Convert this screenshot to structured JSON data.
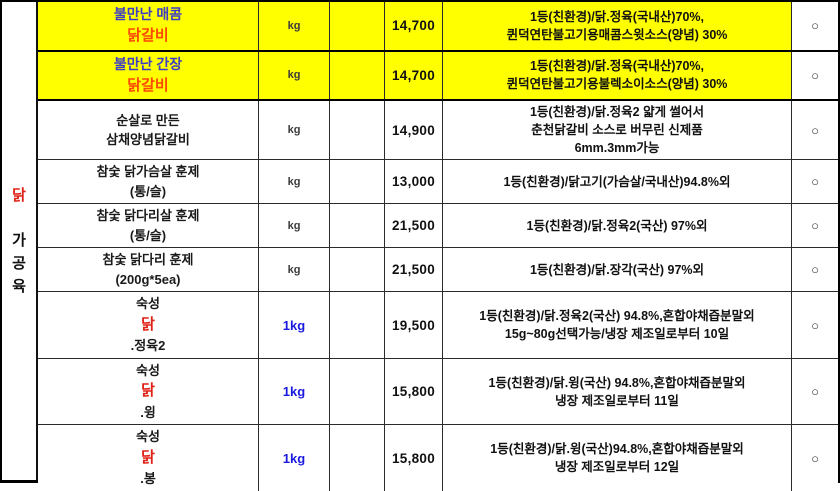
{
  "table": {
    "sidebar": {
      "main": "닭",
      "sub": [
        "가",
        "공",
        "육"
      ]
    },
    "colors": {
      "highlight_bg": "#ffff00",
      "name_blue": "#3c3cc4",
      "name_orange_red": "#ff4800",
      "name_red": "#e02318",
      "unit_blue": "#1a1ae0"
    },
    "marker_symbol": "○",
    "rows": [
      {
        "highlight": true,
        "name_lines": [
          [
            {
              "t": "불만난 매콤 ",
              "s": "blue"
            },
            {
              "t": "닭갈비",
              "s": "orange"
            }
          ]
        ],
        "unit": "kg",
        "unit_style": "dark",
        "price": "14,700",
        "desc_lines": [
          "1등(친환경)/닭.정육(국내산)70%,",
          "퀸덕연탄불고기용매콤스윗소스(양념) 30%"
        ],
        "marker": "○"
      },
      {
        "highlight": true,
        "name_lines": [
          [
            {
              "t": "불만난 간장 ",
              "s": "blue"
            },
            {
              "t": "닭갈비",
              "s": "orange"
            }
          ]
        ],
        "unit": "kg",
        "unit_style": "dark",
        "price": "14,700",
        "desc_lines": [
          "1등(친환경)/닭.정육(국내산)70%,",
          "퀸덕연탄불고기용불렉소이소스(양념) 30%"
        ],
        "marker": "○"
      },
      {
        "highlight": false,
        "name_lines": [
          [
            {
              "t": "순살로 만든",
              "s": "plain"
            }
          ],
          [
            {
              "t": "삼채양념닭갈비",
              "s": "plain"
            }
          ]
        ],
        "unit": "kg",
        "unit_style": "dark",
        "price": "14,900",
        "desc_lines": [
          "1등(친환경)/닭.정육2 얇게 썰어서",
          "춘천닭갈비 소스로 버무린 신제품",
          "6mm.3mm가능"
        ],
        "marker": "○"
      },
      {
        "highlight": false,
        "name_lines": [
          [
            {
              "t": "참숯 닭가슴살 훈제",
              "s": "plain"
            }
          ],
          [
            {
              "t": "(통/슬)",
              "s": "plain"
            }
          ]
        ],
        "unit": "kg",
        "unit_style": "dark",
        "price": "13,000",
        "desc_lines": [
          "1등(친환경)/닭고기(가슴살/국내산)94.8%외"
        ],
        "marker": "○"
      },
      {
        "highlight": false,
        "name_lines": [
          [
            {
              "t": "참숯 닭다리살 훈제",
              "s": "plain"
            }
          ],
          [
            {
              "t": "(통/슬)",
              "s": "plain"
            }
          ]
        ],
        "unit": "kg",
        "unit_style": "dark",
        "price": "21,500",
        "desc_lines": [
          "1등(친환경)/닭.정육2(국산) 97%외"
        ],
        "marker": "○"
      },
      {
        "highlight": false,
        "name_lines": [
          [
            {
              "t": "참숯 닭다리 훈제",
              "s": "plain"
            }
          ],
          [
            {
              "t": "(200g*5ea)",
              "s": "plain"
            }
          ]
        ],
        "unit": "kg",
        "unit_style": "dark",
        "price": "21,500",
        "desc_lines": [
          "1등(친환경)/닭.장각(국산) 97%외"
        ],
        "marker": "○"
      },
      {
        "highlight": false,
        "name_lines": [
          [
            {
              "t": "숙성 ",
              "s": "plain"
            },
            {
              "t": "닭",
              "s": "red"
            },
            {
              "t": ".정육2",
              "s": "plain"
            }
          ]
        ],
        "unit": "1kg",
        "unit_style": "blue",
        "price": "19,500",
        "desc_lines": [
          "1등(친환경)/닭.정육2(국산) 94.8%,혼합야채즙분말외",
          "15g~80g선택가능/냉장 제조일로부터 10일"
        ],
        "marker": "○"
      },
      {
        "highlight": false,
        "name_lines": [
          [
            {
              "t": "숙성 ",
              "s": "plain"
            },
            {
              "t": "닭",
              "s": "red"
            },
            {
              "t": ".윙",
              "s": "plain"
            }
          ]
        ],
        "unit": "1kg",
        "unit_style": "blue",
        "price": "15,800",
        "desc_lines": [
          "1등(친환경)/닭.윙(국산) 94.8%,혼합야채즙분말외",
          "냉장 제조일로부터 11일"
        ],
        "marker": "○"
      },
      {
        "highlight": false,
        "name_lines": [
          [
            {
              "t": "숙성 ",
              "s": "plain"
            },
            {
              "t": "닭",
              "s": "red"
            },
            {
              "t": ".봉",
              "s": "plain"
            }
          ]
        ],
        "unit": "1kg",
        "unit_style": "blue",
        "price": "15,800",
        "desc_lines": [
          "1등(친환경)/닭.윙(국산)94.8%,혼합야채즙분말외",
          "냉장 제조일로부터 12일"
        ],
        "marker": "○"
      }
    ]
  }
}
